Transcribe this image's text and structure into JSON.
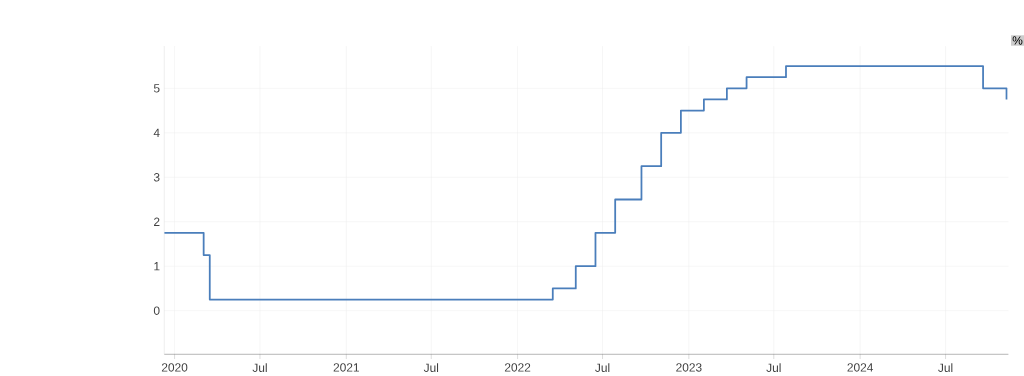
{
  "chart_data": {
    "type": "step",
    "ylabel": "%",
    "color": "#4a7ebb",
    "grid": true,
    "x": [
      "2019-12-10",
      "2020-03-03",
      "2020-03-16",
      "2022-03-17",
      "2022-05-05",
      "2022-06-16",
      "2022-07-28",
      "2022-09-22",
      "2022-11-03",
      "2022-12-15",
      "2023-02-02",
      "2023-03-23",
      "2023-05-04",
      "2023-07-27",
      "2024-09-19",
      "2024-11-08"
    ],
    "values": [
      1.75,
      1.25,
      0.25,
      0.5,
      1.0,
      1.75,
      2.5,
      3.25,
      4.0,
      4.5,
      4.75,
      5.0,
      5.25,
      5.5,
      5.0,
      4.75
    ],
    "xlim": [
      "2019-12-10",
      "2024-11-12"
    ],
    "xticks": [
      {
        "value": "2020-01-01",
        "label": "2020"
      },
      {
        "value": "2020-07-01",
        "label": "Jul"
      },
      {
        "value": "2021-01-01",
        "label": "2021"
      },
      {
        "value": "2021-07-01",
        "label": "Jul"
      },
      {
        "value": "2022-01-01",
        "label": "2022"
      },
      {
        "value": "2022-07-01",
        "label": "Jul"
      },
      {
        "value": "2023-01-01",
        "label": "2023"
      },
      {
        "value": "2023-07-01",
        "label": "Jul"
      },
      {
        "value": "2024-01-01",
        "label": "2024"
      },
      {
        "value": "2024-07-01",
        "label": "Jul"
      }
    ],
    "ylim": [
      -0.98,
      5.95
    ],
    "yticks": [
      0,
      1,
      2,
      3,
      4,
      5
    ]
  }
}
